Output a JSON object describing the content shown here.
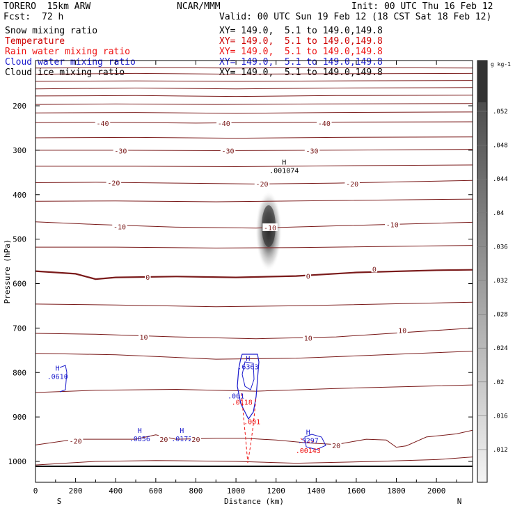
{
  "header": {
    "model": "TORERO  15km ARW",
    "center": "NCAR/MMM",
    "init": "Init: 00 UTC Thu 16 Feb 12",
    "fcst_label": "Fcst:",
    "fcst_value": "72 h",
    "valid": "Valid: 00 UTC Sun 19 Feb 12 (18 CST Sat 18 Feb 12)"
  },
  "fields": [
    {
      "name": "Snow mixing ratio",
      "xy": "XY= 149.0,  5.1 to 149.0,149.8",
      "color": "#000000"
    },
    {
      "name": "Temperature",
      "xy": "XY= 149.0,  5.1 to 149.0,149.8",
      "color": "#cc0000"
    },
    {
      "name": "Rain water mixing ratio",
      "xy": "XY= 149.0,  5.1 to 149.0,149.8",
      "color": "#ee1111"
    },
    {
      "name": "Cloud water mixing ratio",
      "xy": "XY= 149.0,  5.1 to 149.0,149.8",
      "color": "#1a1acc"
    },
    {
      "name": "Cloud ice mixing ratio",
      "xy": "XY= 149.0,  5.1 to 149.0,149.8",
      "color": "#000000"
    }
  ],
  "chart_data": {
    "type": "contour cross-section",
    "xlabel": "Distance (km)",
    "ylabel": "Pressure (hPa)",
    "xlim": [
      0,
      2180
    ],
    "ylim": [
      1010,
      100
    ],
    "x_ticks": [
      0,
      200,
      400,
      600,
      800,
      1000,
      1200,
      1400,
      1600,
      1800,
      2000
    ],
    "y_ticks": [
      200,
      300,
      400,
      500,
      600,
      700,
      800,
      900,
      1000
    ],
    "x_end_labels": {
      "left": "S",
      "right": "N"
    },
    "colorbar": {
      "unit": "g kg-1",
      "ticks": [
        ".052",
        ".048",
        ".044",
        ".04",
        ".036",
        ".032",
        ".028",
        ".024",
        ".02",
        ".016",
        ".012"
      ]
    },
    "temperature_labels": [
      {
        "text": "-40",
        "x": 335,
        "p": 239
      },
      {
        "text": "-40",
        "x": 940,
        "p": 239
      },
      {
        "text": "-40",
        "x": 1440,
        "p": 239
      },
      {
        "text": "-30",
        "x": 425,
        "p": 301
      },
      {
        "text": "-30",
        "x": 960,
        "p": 301
      },
      {
        "text": "-30",
        "x": 1380,
        "p": 301
      },
      {
        "text": "-20",
        "x": 390,
        "p": 373
      },
      {
        "text": "-20",
        "x": 1130,
        "p": 375
      },
      {
        "text": "-20",
        "x": 1580,
        "p": 375
      },
      {
        "text": "-10",
        "x": 420,
        "p": 472
      },
      {
        "text": "-10",
        "x": 1170,
        "p": 474
      },
      {
        "text": "-10",
        "x": 1780,
        "p": 467
      },
      {
        "text": "0",
        "x": 560,
        "p": 585
      },
      {
        "text": "0",
        "x": 1360,
        "p": 583
      },
      {
        "text": "0",
        "x": 1690,
        "p": 567
      },
      {
        "text": "10",
        "x": 540,
        "p": 720
      },
      {
        "text": "10",
        "x": 1360,
        "p": 722
      },
      {
        "text": "10",
        "x": 1830,
        "p": 705
      },
      {
        "text": "-20",
        "x": 200,
        "p": 954
      },
      {
        "text": "20",
        "x": 640,
        "p": 950
      },
      {
        "text": "20",
        "x": 800,
        "p": 950
      },
      {
        "text": "20",
        "x": 1500,
        "p": 964
      }
    ],
    "extrema": [
      {
        "letter": "H",
        "value": ".001074",
        "x": 1240,
        "p": 345,
        "color": "#000000"
      },
      {
        "letter": "H",
        "value": ".0610",
        "x": 110,
        "p": 808,
        "color": "#1a1acc"
      },
      {
        "letter": "H",
        "value": ".6363",
        "x": 1060,
        "p": 786,
        "color": "#1a1acc"
      },
      {
        "letter": "H",
        "value": ".0856",
        "x": 520,
        "p": 948,
        "color": "#1a1acc"
      },
      {
        "letter": "H",
        "value": ".0172",
        "x": 730,
        "p": 948,
        "color": "#1a1acc"
      },
      {
        "letter": "H",
        "value": ".5297",
        "x": 1360,
        "p": 952,
        "color": "#1a1acc"
      },
      {
        "letter": "",
        "value": ".001",
        "x": 1000,
        "p": 852,
        "color": "#1a1acc"
      },
      {
        "letter": "",
        "value": ".0118",
        "x": 1030,
        "p": 866,
        "color": "#ee1111"
      },
      {
        "letter": "",
        "value": ".001",
        "x": 1080,
        "p": 910,
        "color": "#ee1111"
      },
      {
        "letter": "",
        "value": ".00143",
        "x": 1360,
        "p": 975,
        "color": "#ee1111"
      }
    ],
    "temperature_contours": [
      {
        "width": 1,
        "points": [
          [
            0,
            115
          ],
          [
            500,
            114
          ],
          [
            1000,
            115
          ],
          [
            1500,
            114
          ],
          [
            2180,
            115
          ]
        ]
      },
      {
        "width": 1,
        "points": [
          [
            0,
            129
          ],
          [
            500,
            127
          ],
          [
            1000,
            129
          ],
          [
            1500,
            128
          ],
          [
            2180,
            127
          ]
        ]
      },
      {
        "width": 1,
        "points": [
          [
            0,
            145
          ],
          [
            500,
            144
          ],
          [
            1000,
            145
          ],
          [
            1500,
            144
          ],
          [
            2180,
            143
          ]
        ]
      },
      {
        "width": 1,
        "points": [
          [
            0,
            162
          ],
          [
            500,
            160
          ],
          [
            1000,
            162
          ],
          [
            1500,
            160
          ],
          [
            2180,
            159
          ]
        ]
      },
      {
        "width": 1,
        "points": [
          [
            0,
            178
          ],
          [
            500,
            177
          ],
          [
            1000,
            179
          ],
          [
            1500,
            177
          ],
          [
            2180,
            176
          ]
        ]
      },
      {
        "width": 1,
        "points": [
          [
            0,
            197
          ],
          [
            400,
            196
          ],
          [
            900,
            197
          ],
          [
            1400,
            196
          ],
          [
            2180,
            195
          ]
        ]
      },
      {
        "width": 1,
        "points": [
          [
            0,
            216
          ],
          [
            500,
            215
          ],
          [
            1000,
            217
          ],
          [
            1500,
            215
          ],
          [
            2180,
            214
          ]
        ]
      },
      {
        "width": 1,
        "points": [
          [
            0,
            238
          ],
          [
            300,
            237
          ],
          [
            800,
            239
          ],
          [
            1300,
            237
          ],
          [
            2180,
            236
          ]
        ]
      },
      {
        "width": 1,
        "points": [
          [
            0,
            272
          ],
          [
            500,
            271
          ],
          [
            1000,
            273
          ],
          [
            1500,
            271
          ],
          [
            2180,
            270
          ]
        ]
      },
      {
        "width": 1,
        "points": [
          [
            0,
            300
          ],
          [
            400,
            300
          ],
          [
            900,
            301
          ],
          [
            1400,
            300
          ],
          [
            2180,
            298
          ]
        ]
      },
      {
        "width": 1,
        "points": [
          [
            0,
            336
          ],
          [
            500,
            336
          ],
          [
            1000,
            337
          ],
          [
            1500,
            335
          ],
          [
            2180,
            333
          ]
        ]
      },
      {
        "width": 1,
        "points": [
          [
            0,
            373
          ],
          [
            300,
            372
          ],
          [
            700,
            374
          ],
          [
            1100,
            376
          ],
          [
            1500,
            374
          ],
          [
            2180,
            368
          ]
        ]
      },
      {
        "width": 1,
        "points": [
          [
            0,
            415
          ],
          [
            400,
            414
          ],
          [
            900,
            416
          ],
          [
            1300,
            414
          ],
          [
            2180,
            410
          ]
        ]
      },
      {
        "width": 1,
        "points": [
          [
            0,
            461
          ],
          [
            300,
            467
          ],
          [
            700,
            473
          ],
          [
            1100,
            475
          ],
          [
            1500,
            470
          ],
          [
            2180,
            462
          ]
        ]
      },
      {
        "width": 1,
        "points": [
          [
            0,
            518
          ],
          [
            400,
            518
          ],
          [
            900,
            520
          ],
          [
            1300,
            519
          ],
          [
            2180,
            514
          ]
        ]
      },
      {
        "width": 2.2,
        "points": [
          [
            0,
            572
          ],
          [
            200,
            578
          ],
          [
            300,
            590
          ],
          [
            400,
            586
          ],
          [
            700,
            584
          ],
          [
            1000,
            586
          ],
          [
            1300,
            583
          ],
          [
            1600,
            575
          ],
          [
            2000,
            570
          ],
          [
            2180,
            569
          ]
        ]
      },
      {
        "width": 1,
        "points": [
          [
            0,
            646
          ],
          [
            400,
            648
          ],
          [
            900,
            652
          ],
          [
            1300,
            650
          ],
          [
            2180,
            642
          ]
        ]
      },
      {
        "width": 1,
        "points": [
          [
            0,
            712
          ],
          [
            300,
            714
          ],
          [
            700,
            720
          ],
          [
            1100,
            724
          ],
          [
            1500,
            720
          ],
          [
            2180,
            700
          ]
        ]
      },
      {
        "width": 1,
        "points": [
          [
            0,
            757
          ],
          [
            400,
            760
          ],
          [
            900,
            770
          ],
          [
            1300,
            768
          ],
          [
            2180,
            752
          ]
        ]
      },
      {
        "width": 1,
        "points": [
          [
            0,
            845
          ],
          [
            300,
            840
          ],
          [
            700,
            838
          ],
          [
            1100,
            842
          ],
          [
            1500,
            836
          ],
          [
            2180,
            828
          ]
        ]
      },
      {
        "width": 1,
        "points": [
          [
            0,
            963
          ],
          [
            200,
            950
          ],
          [
            500,
            950
          ],
          [
            600,
            940
          ],
          [
            700,
            950
          ],
          [
            900,
            948
          ],
          [
            1050,
            948
          ],
          [
            1200,
            952
          ],
          [
            1350,
            958
          ],
          [
            1500,
            962
          ],
          [
            1650,
            950
          ],
          [
            1750,
            952
          ],
          [
            1800,
            968
          ],
          [
            1850,
            965
          ],
          [
            1950,
            945
          ],
          [
            2100,
            938
          ],
          [
            2180,
            930
          ]
        ]
      },
      {
        "width": 1,
        "points": [
          [
            0,
            1008
          ],
          [
            300,
            1000
          ],
          [
            600,
            998
          ],
          [
            1000,
            1000
          ],
          [
            1300,
            1004
          ],
          [
            1700,
            1000
          ],
          [
            2000,
            996
          ],
          [
            2180,
            990
          ]
        ]
      }
    ]
  }
}
